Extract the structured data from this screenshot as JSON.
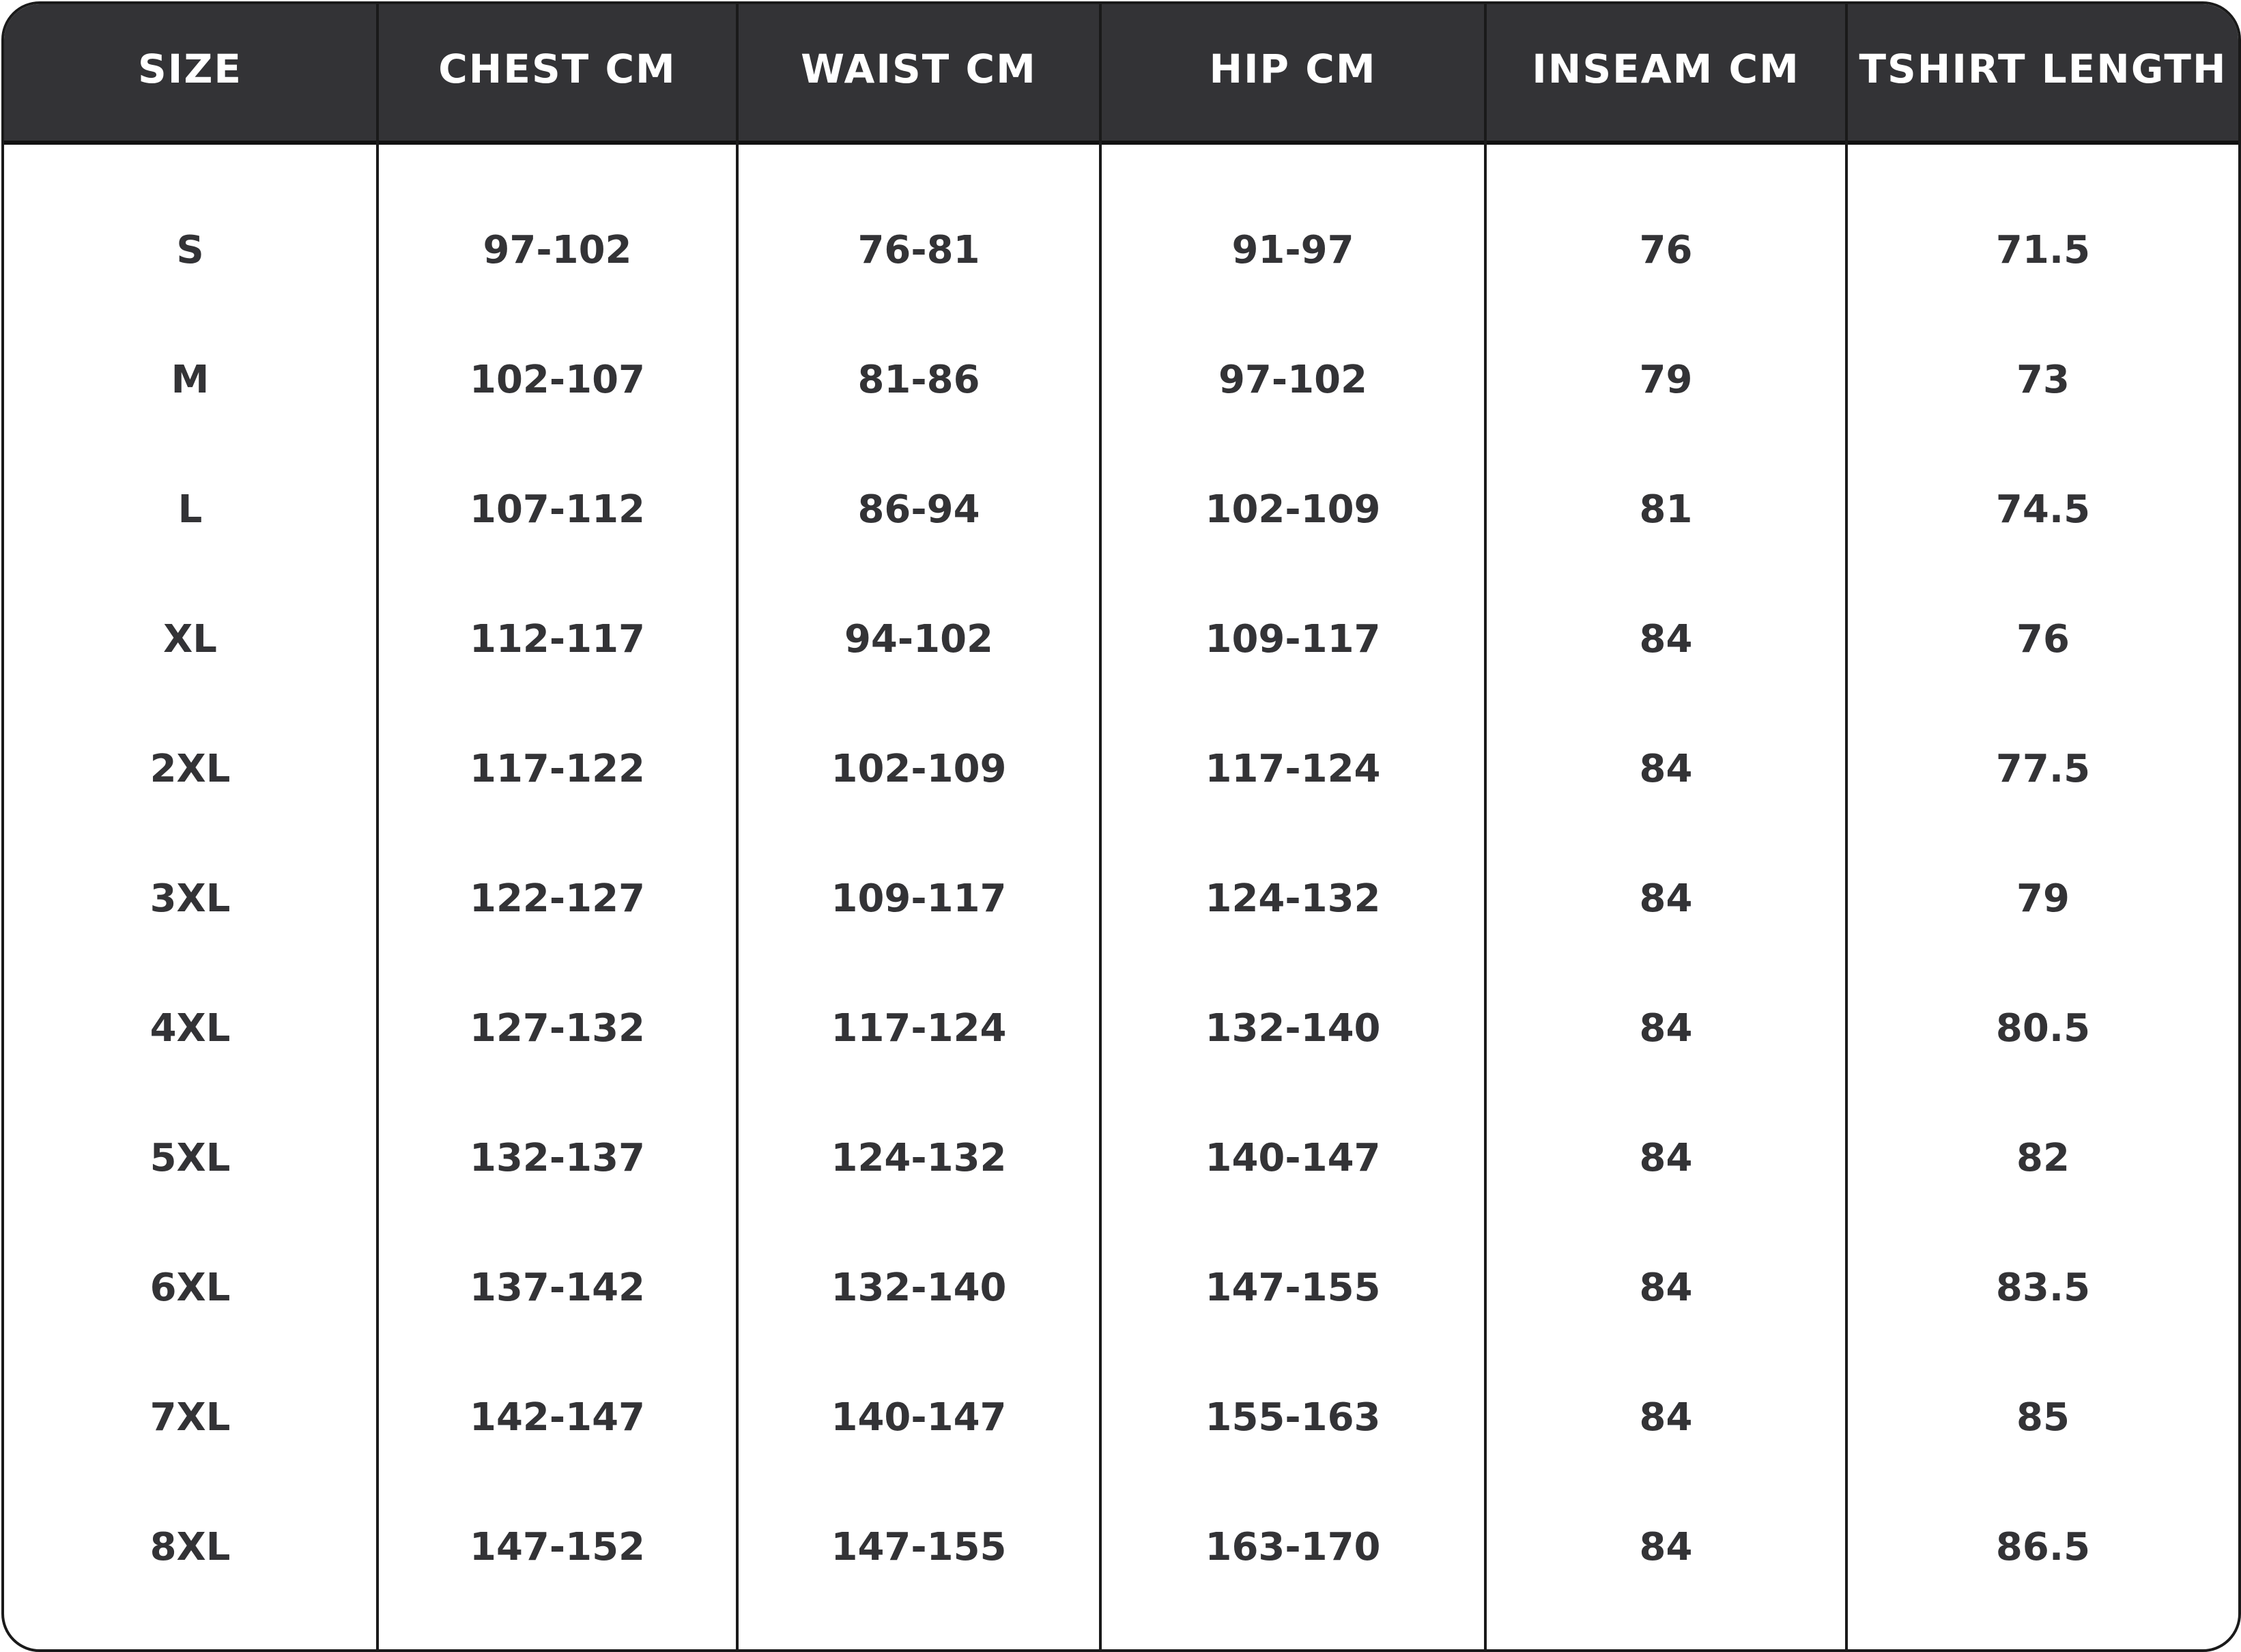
{
  "colors": {
    "header_bg": "#333336",
    "header_text": "#ffffff",
    "body_text": "#333336",
    "border": "#1a1a1a"
  },
  "headers": [
    "SIZE",
    "CHEST CM",
    "WAIST CM",
    "HIP CM",
    "INSEAM CM",
    "TSHIRT LENGTH"
  ],
  "rows": [
    [
      "S",
      "97-102",
      "76-81",
      "91-97",
      "76",
      "71.5"
    ],
    [
      "M",
      "102-107",
      "81-86",
      "97-102",
      "79",
      "73"
    ],
    [
      "L",
      "107-112",
      "86-94",
      "102-109",
      "81",
      "74.5"
    ],
    [
      "XL",
      "112-117",
      "94-102",
      "109-117",
      "84",
      "76"
    ],
    [
      "2XL",
      "117-122",
      "102-109",
      "117-124",
      "84",
      "77.5"
    ],
    [
      "3XL",
      "122-127",
      "109-117",
      "124-132",
      "84",
      "79"
    ],
    [
      "4XL",
      "127-132",
      "117-124",
      "132-140",
      "84",
      "80.5"
    ],
    [
      "5XL",
      "132-137",
      "124-132",
      "140-147",
      "84",
      "82"
    ],
    [
      "6XL",
      "137-142",
      "132-140",
      "147-155",
      "84",
      "83.5"
    ],
    [
      "7XL",
      "142-147",
      "140-147",
      "155-163",
      "84",
      "85"
    ],
    [
      "8XL",
      "147-152",
      "147-155",
      "163-170",
      "84",
      "86.5"
    ]
  ]
}
